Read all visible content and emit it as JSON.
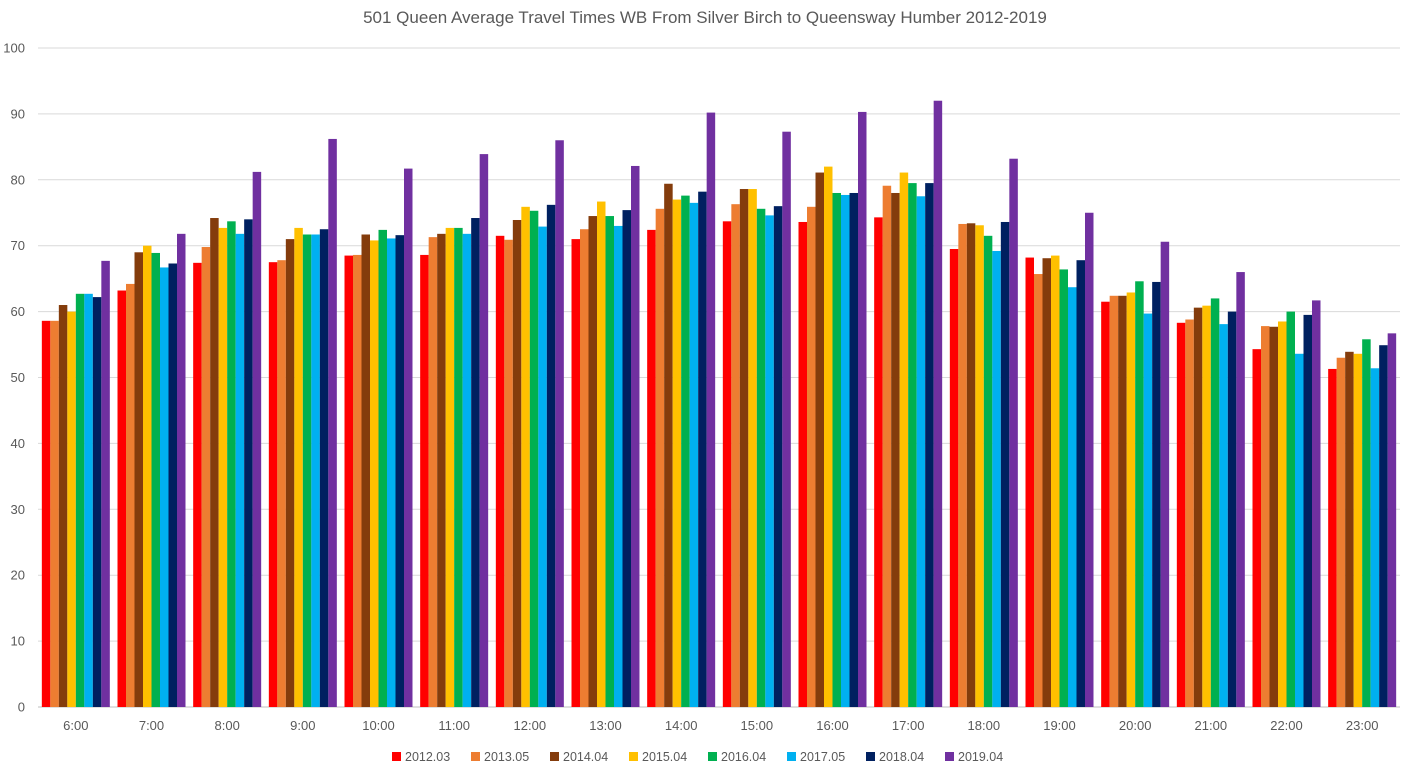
{
  "chart_data": {
    "type": "bar",
    "title": "501 Queen Average Travel Times WB From Silver Birch to Queensway Humber 2012-2019",
    "xlabel": "",
    "ylabel": "",
    "ylim": [
      0,
      100
    ],
    "yticks": [
      0,
      10,
      20,
      30,
      40,
      50,
      60,
      70,
      80,
      90,
      100
    ],
    "grid": true,
    "legend_position": "bottom",
    "categories": [
      "6:00",
      "7:00",
      "8:00",
      "9:00",
      "10:00",
      "11:00",
      "12:00",
      "13:00",
      "14:00",
      "15:00",
      "16:00",
      "17:00",
      "18:00",
      "19:00",
      "20:00",
      "21:00",
      "22:00",
      "23:00"
    ],
    "series": [
      {
        "name": "2012.03",
        "color": "#ff0000",
        "values": [
          58.6,
          63.2,
          67.4,
          67.5,
          68.5,
          68.6,
          71.5,
          71.0,
          72.4,
          73.7,
          73.6,
          74.3,
          69.5,
          68.2,
          61.5,
          58.3,
          54.3,
          51.3
        ]
      },
      {
        "name": "2013.05",
        "color": "#ed7d31",
        "values": [
          58.6,
          64.2,
          69.8,
          67.8,
          68.6,
          71.3,
          70.9,
          72.5,
          75.6,
          76.3,
          75.9,
          79.1,
          73.3,
          65.7,
          62.4,
          58.8,
          57.8,
          53.0
        ]
      },
      {
        "name": "2014.04",
        "color": "#843c0c",
        "values": [
          61.0,
          69.0,
          74.2,
          71.0,
          71.7,
          71.8,
          73.9,
          74.5,
          79.4,
          78.6,
          81.1,
          78.0,
          73.4,
          68.1,
          62.4,
          60.6,
          57.7,
          53.9
        ]
      },
      {
        "name": "2015.04",
        "color": "#ffc000",
        "values": [
          60.0,
          70.0,
          72.7,
          72.7,
          70.8,
          72.7,
          75.9,
          76.7,
          77.0,
          78.6,
          82.0,
          81.1,
          73.1,
          68.5,
          62.9,
          60.9,
          58.5,
          53.6
        ]
      },
      {
        "name": "2016.04",
        "color": "#00b050",
        "values": [
          62.7,
          68.9,
          73.7,
          71.7,
          72.4,
          72.7,
          75.3,
          74.5,
          77.6,
          75.6,
          78.0,
          79.5,
          71.5,
          66.4,
          64.6,
          62.0,
          60.0,
          55.8
        ]
      },
      {
        "name": "2017.05",
        "color": "#00b0f0",
        "values": [
          62.7,
          66.7,
          71.8,
          71.7,
          71.1,
          71.8,
          72.9,
          73.0,
          76.5,
          74.6,
          77.7,
          77.5,
          69.2,
          63.7,
          59.7,
          58.1,
          53.6,
          51.4
        ]
      },
      {
        "name": "2018.04",
        "color": "#002060",
        "values": [
          62.2,
          67.3,
          74.0,
          72.5,
          71.6,
          74.2,
          76.2,
          75.4,
          78.2,
          76.0,
          78.0,
          79.5,
          73.6,
          67.8,
          64.5,
          60.0,
          59.5,
          54.9
        ]
      },
      {
        "name": "2019.04",
        "color": "#7030a0",
        "values": [
          67.7,
          71.8,
          81.2,
          86.2,
          81.7,
          83.9,
          86.0,
          82.1,
          90.2,
          87.3,
          90.3,
          92.0,
          83.2,
          75.0,
          70.6,
          66.0,
          61.7,
          56.7
        ]
      }
    ]
  }
}
